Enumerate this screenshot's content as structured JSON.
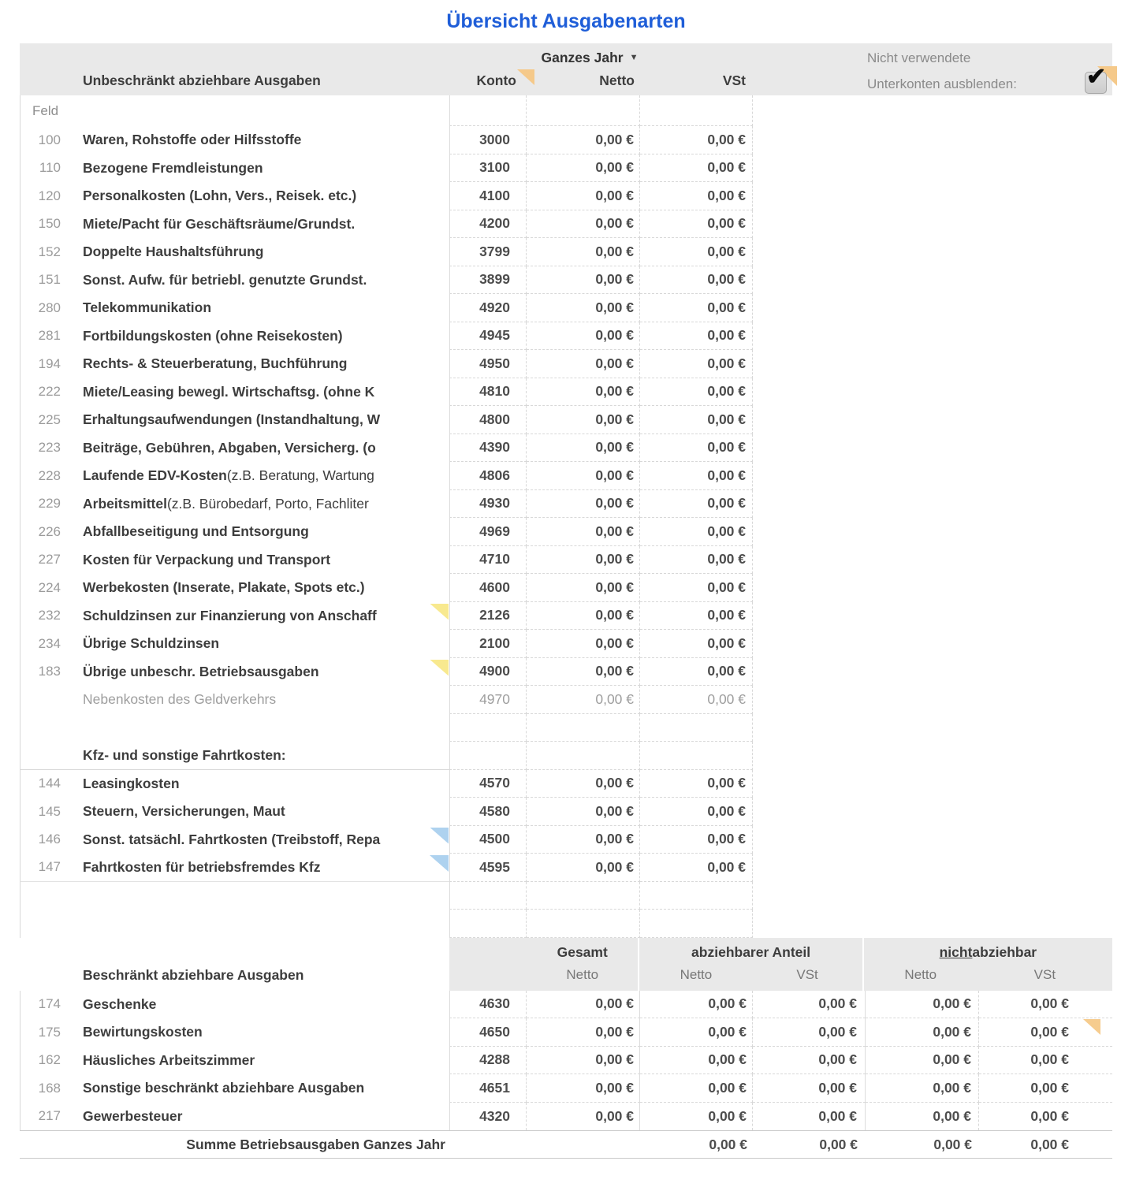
{
  "title": "Übersicht Ausgabenarten",
  "table1": {
    "period_label": "Ganzes Jahr",
    "headers": {
      "expenses": "Unbeschränkt abziehbare Ausgaben",
      "konto": "Konto",
      "netto": "Netto",
      "vst": "VSt"
    },
    "hide_option": {
      "line1": "Nicht verwendete",
      "line2": "Unterkonten ausblenden:",
      "checked": true
    },
    "feld_label": "Feld",
    "rows": [
      {
        "feld": "100",
        "text": "Waren, Rohstoffe oder Hilfsstoffe",
        "konto": "3000",
        "netto": "0,00 €",
        "vst": "0,00 €"
      },
      {
        "feld": "110",
        "text": "Bezogene Fremdleistungen",
        "konto": "3100",
        "netto": "0,00 €",
        "vst": "0,00 €"
      },
      {
        "feld": "120",
        "text": "Personalkosten (Lohn, Vers., Reisek. etc.)",
        "konto": "4100",
        "netto": "0,00 €",
        "vst": "0,00 €"
      },
      {
        "feld": "150",
        "text": "Miete/Pacht für Geschäftsräume/Grundst.",
        "konto": "4200",
        "netto": "0,00 €",
        "vst": "0,00 €"
      },
      {
        "feld": "152",
        "text": "Doppelte Haushaltsführung",
        "konto": "3799",
        "netto": "0,00 €",
        "vst": "0,00 €"
      },
      {
        "feld": "151",
        "text": "Sonst. Aufw. für betriebl. genutzte Grundst.",
        "konto": "3899",
        "netto": "0,00 €",
        "vst": "0,00 €"
      },
      {
        "feld": "280",
        "text": "Telekommunikation",
        "konto": "4920",
        "netto": "0,00 €",
        "vst": "0,00 €"
      },
      {
        "feld": "281",
        "text": "Fortbildungskosten (ohne Reisekosten)",
        "konto": "4945",
        "netto": "0,00 €",
        "vst": "0,00 €"
      },
      {
        "feld": "194",
        "text": "Rechts- & Steuerberatung, Buchführung",
        "konto": "4950",
        "netto": "0,00 €",
        "vst": "0,00 €"
      },
      {
        "feld": "222",
        "text": "Miete/Leasing bewegl. Wirtschaftsg. (ohne K",
        "konto": "4810",
        "netto": "0,00 €",
        "vst": "0,00 €"
      },
      {
        "feld": "225",
        "text": "Erhaltungsaufwendungen (Instandhaltung, W",
        "konto": "4800",
        "netto": "0,00 €",
        "vst": "0,00 €"
      },
      {
        "feld": "223",
        "text": "Beiträge, Gebühren, Abgaben, Versicherg. (o",
        "konto": "4390",
        "netto": "0,00 €",
        "vst": "0,00 €"
      },
      {
        "feld": "228",
        "text": "Laufende EDV-Kosten",
        "text_light": " (z.B. Beratung, Wartung",
        "konto": "4806",
        "netto": "0,00 €",
        "vst": "0,00 €"
      },
      {
        "feld": "229",
        "text": "Arbeitsmittel",
        "text_light": " (z.B. Bürobedarf, Porto, Fachliter",
        "konto": "4930",
        "netto": "0,00 €",
        "vst": "0,00 €"
      },
      {
        "feld": "226",
        "text": "Abfallbeseitigung und Entsorgung",
        "konto": "4969",
        "netto": "0,00 €",
        "vst": "0,00 €"
      },
      {
        "feld": "227",
        "text": "Kosten für Verpackung und Transport",
        "konto": "4710",
        "netto": "0,00 €",
        "vst": "0,00 €"
      },
      {
        "feld": "224",
        "text": "Werbekosten (Inserate, Plakate, Spots etc.)",
        "konto": "4600",
        "netto": "0,00 €",
        "vst": "0,00 €"
      },
      {
        "feld": "232",
        "text": "Schuldzinsen zur Finanzierung von Anschaff",
        "konto": "2126",
        "netto": "0,00 €",
        "vst": "0,00 €",
        "marker": "yellow"
      },
      {
        "feld": "234",
        "text": "Übrige Schuldzinsen",
        "konto": "2100",
        "netto": "0,00 €",
        "vst": "0,00 €"
      },
      {
        "feld": "183",
        "text": "Übrige unbeschr. Betriebsausgaben",
        "konto": "4900",
        "netto": "0,00 €",
        "vst": "0,00 €",
        "marker": "yellow"
      },
      {
        "feld": "",
        "text": "Nebenkosten des Geldverkehrs",
        "konto": "4970",
        "netto": "0,00 €",
        "vst": "0,00 €",
        "grayed": true
      }
    ],
    "section2_label": "Kfz- und sonstige Fahrtkosten:",
    "rows2": [
      {
        "feld": "144",
        "text": "Leasingkosten",
        "konto": "4570",
        "netto": "0,00 €",
        "vst": "0,00 €"
      },
      {
        "feld": "145",
        "text": "Steuern, Versicherungen, Maut",
        "konto": "4580",
        "netto": "0,00 €",
        "vst": "0,00 €"
      },
      {
        "feld": "146",
        "text": "Sonst. tatsächl. Fahrtkosten (Treibstoff, Repa",
        "konto": "4500",
        "netto": "0,00 €",
        "vst": "0,00 €",
        "marker": "blue"
      },
      {
        "feld": "147",
        "text": "Fahrtkosten für betriebsfremdes Kfz",
        "konto": "4595",
        "netto": "0,00 €",
        "vst": "0,00 €",
        "marker": "blue"
      }
    ]
  },
  "table2": {
    "header": "Beschränkt abziehbare Ausgaben",
    "groups": {
      "g1": {
        "label": "Gesamt",
        "sub1": "Netto"
      },
      "g2": {
        "label": "abziehbarer Anteil",
        "sub1": "Netto",
        "sub2": "VSt"
      },
      "g3": {
        "word_underlined": "nicht",
        "word_rest": " abziehbar",
        "sub1": "Netto",
        "sub2": "VSt"
      }
    },
    "rows": [
      {
        "feld": "174",
        "text": "Geschenke",
        "konto": "4630",
        "values": [
          "0,00 €",
          "0,00 €",
          "0,00 €",
          "0,00 €",
          "0,00 €"
        ]
      },
      {
        "feld": "175",
        "text": "Bewirtungskosten",
        "konto": "4650",
        "values": [
          "0,00 €",
          "0,00 €",
          "0,00 €",
          "0,00 €",
          "0,00 €"
        ],
        "marker_last": "orange"
      },
      {
        "feld": "162",
        "text": "Häusliches Arbeitszimmer",
        "konto": "4288",
        "values": [
          "0,00 €",
          "0,00 €",
          "0,00 €",
          "0,00 €",
          "0,00 €"
        ]
      },
      {
        "feld": "168",
        "text": "Sonstige beschränkt abziehbare Ausgaben",
        "konto": "4651",
        "values": [
          "0,00 €",
          "0,00 €",
          "0,00 €",
          "0,00 €",
          "0,00 €"
        ]
      },
      {
        "feld": "217",
        "text": "Gewerbesteuer",
        "konto": "4320",
        "values": [
          "0,00 €",
          "0,00 €",
          "0,00 €",
          "0,00 €",
          "0,00 €"
        ]
      }
    ],
    "sum_label": "Summe Betriebsausgaben Ganzes Jahr",
    "sum_values": [
      "0,00 €",
      "0,00 €",
      "0,00 €",
      "0,00 €"
    ]
  },
  "colors": {
    "title_blue": "#1f5ed8",
    "header_band": "#e9e9e9",
    "comment_marker_orange": "#f5c98a",
    "clip_marker_yellow": "#f8e98f",
    "clip_marker_blue": "#aed2ef"
  }
}
